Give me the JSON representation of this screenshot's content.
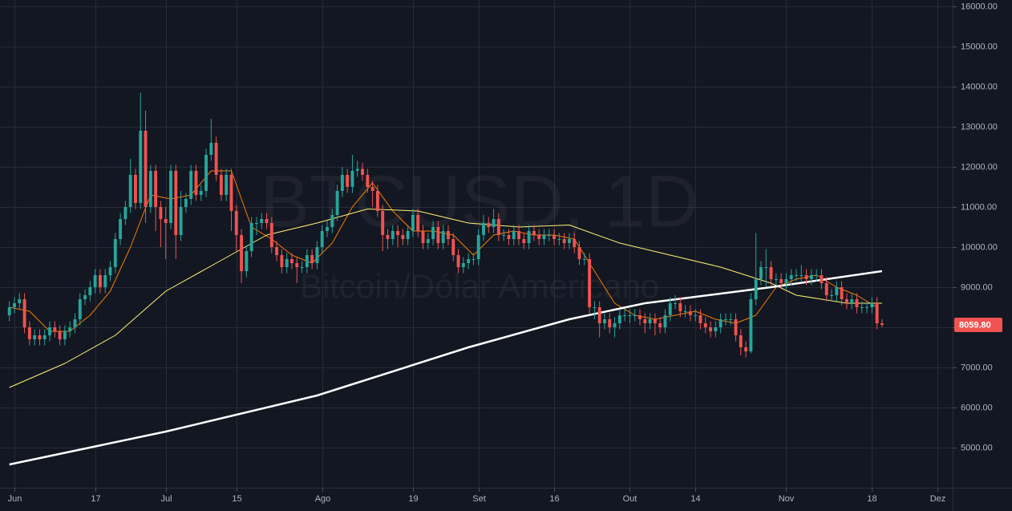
{
  "chart_data": {
    "type": "candlestick",
    "title": "BTCUSD, 1D",
    "subtitle": "Bitcoin/Dólar Americano",
    "x": [
      -1,
      0,
      1,
      2,
      3,
      4,
      5,
      6,
      7,
      8,
      9,
      10,
      11,
      12,
      13,
      14,
      15,
      16,
      17,
      18,
      19,
      20,
      21,
      22,
      23,
      24,
      25,
      26,
      27,
      28,
      29,
      30,
      31,
      32,
      33,
      34,
      35,
      36,
      37,
      38,
      39,
      40,
      41,
      42,
      43,
      44,
      45,
      46,
      47,
      48,
      49,
      50,
      51,
      52,
      53,
      54,
      55,
      56,
      57,
      58,
      59,
      60,
      61,
      62,
      63,
      64,
      65,
      66,
      67,
      68,
      69,
      70,
      71,
      72,
      73,
      74,
      75,
      76,
      77,
      78,
      79,
      80,
      81,
      82,
      83,
      84,
      85,
      86,
      87,
      88,
      89,
      90,
      91,
      92,
      93,
      94,
      95,
      96,
      97,
      98,
      99,
      100,
      101,
      102,
      103,
      104,
      105,
      106,
      107,
      108,
      109,
      110,
      111,
      112,
      113,
      114,
      115,
      116,
      117,
      118,
      119,
      120,
      121,
      122,
      123,
      124,
      125,
      126,
      127,
      128,
      129,
      130,
      131,
      132,
      133,
      134,
      135,
      136,
      137,
      138,
      139,
      140,
      141,
      142,
      143,
      144,
      145,
      146,
      147,
      148,
      149,
      150,
      151,
      152,
      153,
      154,
      155,
      156,
      157,
      158,
      159,
      160,
      161,
      162,
      163,
      164,
      165,
      166,
      167,
      168,
      169,
      170,
      171,
      172
    ],
    "open": [
      8300,
      8500,
      8600,
      8700,
      8000,
      7700,
      7800,
      7700,
      7800,
      8000,
      7900,
      7700,
      7900,
      8000,
      8200,
      8700,
      8800,
      9000,
      9300,
      9000,
      9300,
      9500,
      10200,
      10700,
      11000,
      11800,
      11100,
      12900,
      11000,
      11900,
      11000,
      10700,
      10600,
      11900,
      10300,
      11000,
      11200,
      11900,
      11300,
      11400,
      12300,
      12600,
      11800,
      11300,
      11800,
      10900,
      10300,
      9400,
      9900,
      10600,
      10600,
      10700,
      10600,
      10000,
      9800,
      9500,
      9700,
      9600,
      9500,
      9500,
      9800,
      9600,
      10000,
      10400,
      10500,
      10800,
      11400,
      11800,
      11500,
      11900,
      11950,
      11800,
      11500,
      11400,
      10900,
      10300,
      10200,
      10400,
      10300,
      10200,
      10400,
      10800,
      10400,
      10100,
      10200,
      10500,
      10100,
      10400,
      10200,
      9800,
      9500,
      9600,
      9700,
      9700,
      10300,
      10600,
      10500,
      10700,
      10300,
      10300,
      10200,
      10400,
      10200,
      10100,
      10400,
      10300,
      10200,
      10300,
      10300,
      10200,
      10200,
      10100,
      10200,
      10000,
      9700,
      9700,
      8500,
      8500,
      8100,
      8200,
      8000,
      8100,
      8300,
      8300,
      8300,
      8300,
      8200,
      8100,
      8200,
      8100,
      8000,
      8300,
      8600,
      8600,
      8400,
      8400,
      8300,
      8300,
      8100,
      8000,
      7900,
      8000,
      8200,
      8200,
      8200,
      7800,
      7500,
      7400,
      8700,
      9200,
      9500,
      9500,
      9200,
      9200,
      9100,
      9200,
      9300,
      9300,
      9300,
      9200,
      9300,
      9300,
      9100,
      8800,
      8800,
      9000,
      8700,
      8600,
      8700,
      8500,
      8500,
      8500,
      8600,
      8100
    ],
    "high": [
      8650,
      8750,
      8850,
      8850,
      8150,
      7950,
      7950,
      7950,
      8150,
      8150,
      8050,
      8050,
      8150,
      8350,
      8850,
      8950,
      9150,
      9450,
      9450,
      9450,
      9650,
      10350,
      10850,
      11150,
      12200,
      11950,
      13850,
      13400,
      12050,
      12050,
      11150,
      11000,
      12050,
      12050,
      11400,
      11350,
      12050,
      12050,
      11550,
      12450,
      13200,
      12750,
      11950,
      11950,
      11950,
      11050,
      10450,
      10050,
      10750,
      10750,
      10850,
      10850,
      10750,
      10150,
      9950,
      9850,
      9850,
      9750,
      9650,
      9950,
      9950,
      10150,
      10550,
      10650,
      10950,
      11550,
      12000,
      11950,
      12300,
      12150,
      12100,
      11950,
      11650,
      11550,
      11050,
      10450,
      10550,
      10550,
      10450,
      10550,
      10950,
      10950,
      10550,
      10350,
      10650,
      10650,
      10550,
      10550,
      10350,
      9950,
      9750,
      9850,
      9850,
      10450,
      10800,
      10750,
      10950,
      10850,
      10450,
      10450,
      10550,
      10550,
      10350,
      10550,
      10550,
      10450,
      10450,
      10450,
      10450,
      10350,
      10350,
      10350,
      10350,
      10150,
      9850,
      9850,
      8650,
      8650,
      8350,
      8350,
      8250,
      8450,
      8450,
      8450,
      8450,
      8450,
      8350,
      8350,
      8350,
      8250,
      8450,
      8750,
      8800,
      8750,
      8550,
      8550,
      8450,
      8450,
      8250,
      8150,
      8150,
      8350,
      8350,
      8350,
      8350,
      7950,
      7650,
      8850,
      10350,
      9650,
      9950,
      9650,
      9350,
      9350,
      9350,
      9450,
      9450,
      9550,
      9450,
      9450,
      9450,
      9450,
      9250,
      8950,
      9150,
      9150,
      8850,
      8850,
      8850,
      8650,
      8650,
      8750,
      8750,
      8200
    ],
    "low": [
      8150,
      8350,
      8450,
      7850,
      7550,
      7550,
      7550,
      7550,
      7650,
      7750,
      7550,
      7550,
      7750,
      7850,
      8050,
      8550,
      8650,
      8850,
      8850,
      8850,
      9150,
      9350,
      10050,
      10550,
      10850,
      10950,
      10950,
      10600,
      10850,
      10400,
      10000,
      9700,
      10450,
      9700,
      10150,
      10850,
      11050,
      11150,
      11150,
      11250,
      12150,
      11650,
      11150,
      11150,
      10400,
      9900,
      9100,
      9250,
      9750,
      10300,
      10450,
      10450,
      9850,
      9650,
      9350,
      9350,
      9450,
      9100,
      9350,
      9350,
      9450,
      9450,
      9850,
      10250,
      10350,
      10650,
      11250,
      11350,
      11350,
      11750,
      11650,
      11350,
      11000,
      10750,
      9900,
      9950,
      10050,
      10000,
      10050,
      10050,
      10250,
      10250,
      9950,
      9950,
      10050,
      9950,
      9950,
      10050,
      9650,
      9350,
      9350,
      9450,
      9550,
      9550,
      10150,
      10350,
      10350,
      10150,
      10150,
      10050,
      10050,
      10050,
      9950,
      9950,
      10150,
      10050,
      10050,
      10150,
      10050,
      10050,
      9950,
      9950,
      9850,
      9550,
      9550,
      8350,
      8200,
      7750,
      7950,
      7850,
      7750,
      7950,
      8150,
      8100,
      8150,
      8050,
      7850,
      7950,
      7800,
      7850,
      7850,
      8150,
      8450,
      8250,
      8250,
      8150,
      8150,
      7950,
      7850,
      7750,
      7750,
      7850,
      8050,
      8050,
      7650,
      7300,
      7250,
      7350,
      8550,
      9050,
      9000,
      9050,
      9050,
      8950,
      8950,
      9050,
      9150,
      9150,
      9050,
      9050,
      9150,
      8950,
      8650,
      8650,
      8650,
      8550,
      8450,
      8450,
      8350,
      8350,
      8350,
      8350,
      7950,
      8000
    ],
    "close": [
      8500,
      8600,
      8700,
      8000,
      7700,
      7800,
      7700,
      7800,
      8000,
      7900,
      7700,
      7900,
      8000,
      8200,
      8700,
      8800,
      9000,
      9300,
      9000,
      9300,
      9500,
      10200,
      10700,
      11000,
      11800,
      11100,
      12900,
      11000,
      11900,
      11000,
      10700,
      10600,
      11900,
      10300,
      11000,
      11200,
      11900,
      11300,
      11400,
      12300,
      12600,
      11800,
      11300,
      11800,
      10900,
      10300,
      9400,
      9900,
      10600,
      10600,
      10700,
      10600,
      10000,
      9800,
      9500,
      9700,
      9600,
      9500,
      9500,
      9800,
      9600,
      10000,
      10400,
      10500,
      10800,
      11400,
      11800,
      11500,
      11900,
      11950,
      11800,
      11500,
      11400,
      10900,
      10300,
      10200,
      10400,
      10300,
      10200,
      10400,
      10800,
      10400,
      10100,
      10200,
      10500,
      10100,
      10400,
      10200,
      9800,
      9500,
      9600,
      9700,
      9700,
      10300,
      10600,
      10500,
      10700,
      10300,
      10300,
      10200,
      10400,
      10200,
      10100,
      10400,
      10300,
      10200,
      10300,
      10300,
      10200,
      10200,
      10100,
      10200,
      10000,
      9700,
      9700,
      8500,
      8500,
      8100,
      8200,
      8000,
      8100,
      8300,
      8300,
      8300,
      8300,
      8200,
      8100,
      8200,
      8100,
      8000,
      8300,
      8600,
      8600,
      8400,
      8400,
      8300,
      8300,
      8100,
      8000,
      7900,
      8000,
      8200,
      8200,
      8200,
      7800,
      7500,
      7400,
      8700,
      9200,
      9500,
      9500,
      9200,
      9200,
      9100,
      9200,
      9300,
      9300,
      9300,
      9200,
      9300,
      9300,
      9100,
      8800,
      8800,
      9000,
      8700,
      8600,
      8700,
      8500,
      8500,
      8500,
      8600,
      8100,
      8059.8
    ],
    "up_color": "#26a69a",
    "down_color": "#ef5350",
    "lines": [
      {
        "color": "#f57c00",
        "width": 1,
        "x": [
          -1,
          3,
          7,
          11,
          15,
          19,
          23,
          27,
          31,
          35,
          39,
          43,
          47,
          51,
          55,
          59,
          63,
          67,
          71,
          75,
          79,
          83,
          87,
          91,
          95,
          99,
          103,
          107,
          111,
          115,
          119,
          123,
          127,
          131,
          135,
          139,
          143,
          147,
          151,
          155,
          159,
          163,
          167,
          171
        ],
        "values": [
          8500,
          8400,
          7900,
          7900,
          8300,
          8900,
          10000,
          11300,
          11200,
          11300,
          11900,
          11900,
          10500,
          10200,
          9800,
          9600,
          10100,
          11000,
          11600,
          10900,
          10400,
          10400,
          10300,
          9800,
          10300,
          10400,
          10300,
          10300,
          10200,
          9400,
          8600,
          8300,
          8200,
          8300,
          8400,
          8200,
          8100,
          8300,
          9000,
          9200,
          9300,
          9000,
          8800,
          8500
        ]
      },
      {
        "color": "#fff176",
        "width": 1,
        "x": [
          -1,
          10,
          20,
          30,
          40,
          50,
          60,
          70,
          80,
          90,
          100,
          110,
          120,
          130,
          140,
          150,
          155,
          165,
          172
        ],
        "values": [
          6500,
          7100,
          7800,
          8900,
          9600,
          10300,
          10600,
          10950,
          10900,
          10600,
          10500,
          10550,
          10100,
          9800,
          9500,
          9100,
          8800,
          8600,
          8600
        ]
      },
      {
        "color": "#ffffff",
        "width": 2.5,
        "x": [
          -1,
          30,
          60,
          90,
          110,
          125,
          150,
          172
        ],
        "values": [
          4580,
          5400,
          6300,
          7500,
          8200,
          8600,
          9000,
          9400
        ]
      }
    ],
    "xlim": [
      -2.86,
      186.0
    ],
    "xticks": [
      {
        "value": 0,
        "label": "Jun"
      },
      {
        "value": 16,
        "label": "17"
      },
      {
        "value": 30,
        "label": "Jul"
      },
      {
        "value": 44,
        "label": "15"
      },
      {
        "value": 61,
        "label": "Ago"
      },
      {
        "value": 79,
        "label": "19"
      },
      {
        "value": 92,
        "label": "Set"
      },
      {
        "value": 107,
        "label": "16"
      },
      {
        "value": 122,
        "label": "Out"
      },
      {
        "value": 135,
        "label": "14"
      },
      {
        "value": 153,
        "label": "Nov"
      },
      {
        "value": 170,
        "label": "18"
      },
      {
        "value": 183,
        "label": "Dez"
      }
    ],
    "ylim": [
      4000,
      16160
    ],
    "yticks": [
      {
        "value": 5000,
        "label": "5000.00"
      },
      {
        "value": 6000,
        "label": "6000.00"
      },
      {
        "value": 7000,
        "label": "7000.00"
      },
      {
        "value": 8000,
        "label": "8000.00"
      },
      {
        "value": 9000,
        "label": "9000.00"
      },
      {
        "value": 10000,
        "label": "10000.00"
      },
      {
        "value": 11000,
        "label": "11000.00"
      },
      {
        "value": 12000,
        "label": "12000.00"
      },
      {
        "value": 13000,
        "label": "13000.00"
      },
      {
        "value": 14000,
        "label": "14000.00"
      },
      {
        "value": 15000,
        "label": "15000.00"
      },
      {
        "value": 16000,
        "label": "16000.00"
      }
    ],
    "grid": true,
    "last_price": {
      "value": 8059.8,
      "label": "8059.80"
    }
  }
}
